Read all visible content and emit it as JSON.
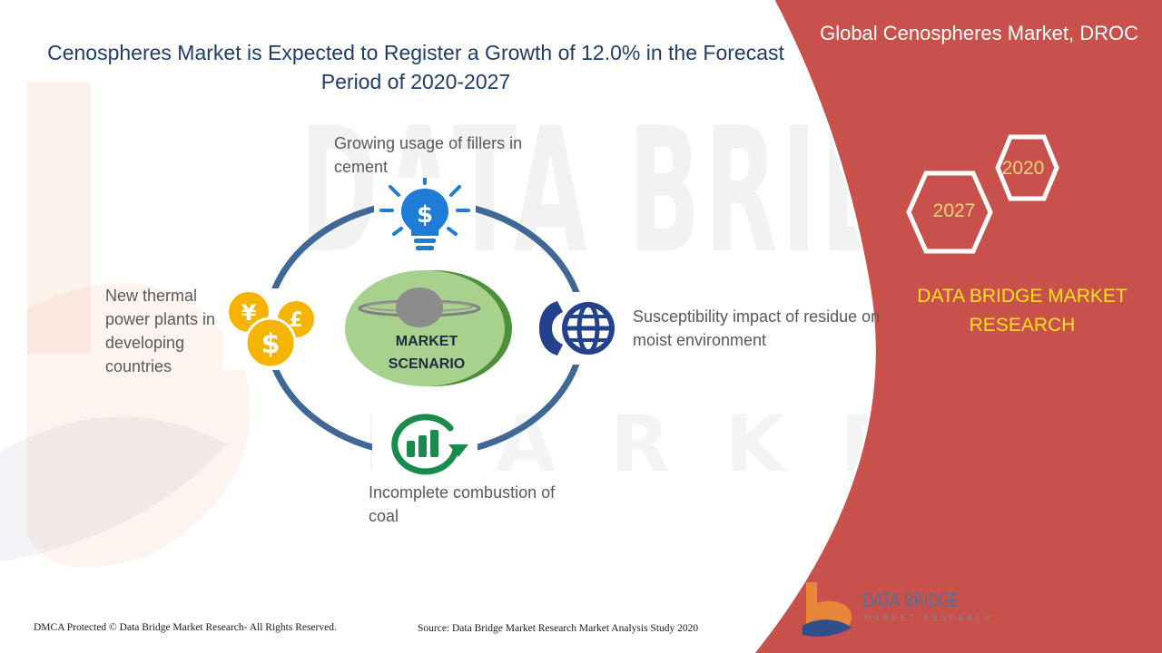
{
  "title": "Cenospheres Market is Expected to Register a Growth of 12.0% in the Forecast Period of 2020-2027",
  "right_panel": {
    "heading": "Global Cenospheres Market, DROC",
    "year_start": "2020",
    "year_end": "2027",
    "brand": "DATA BRIDGE MARKET RESEARCH",
    "panel_color": "#c9514c",
    "brand_color": "#ffe31a"
  },
  "diagram": {
    "center_label": "MARKET SCENARIO",
    "ring_color": "#3f6896",
    "nodes": [
      {
        "position": "top",
        "icon": "lightbulb-dollar-icon",
        "text": "Growing usage of fillers in cement"
      },
      {
        "position": "right",
        "icon": "phone-globe-icon",
        "text": "Susceptibility impact of residue on moist environment"
      },
      {
        "position": "bottom",
        "icon": "growth-chart-icon",
        "text": "Incomplete combustion of coal"
      },
      {
        "position": "left",
        "icon": "currency-coins-icon",
        "text": "New thermal power plants in developing countries"
      }
    ]
  },
  "footer": {
    "copyright": "DMCA Protected © Data Bridge Market Research- All Rights Reserved.",
    "source": "Source: Data Bridge Market Research Market Analysis Study 2020"
  },
  "logo": {
    "name": "DATA BRIDGE",
    "tagline": "MARKET RESEARCH"
  }
}
